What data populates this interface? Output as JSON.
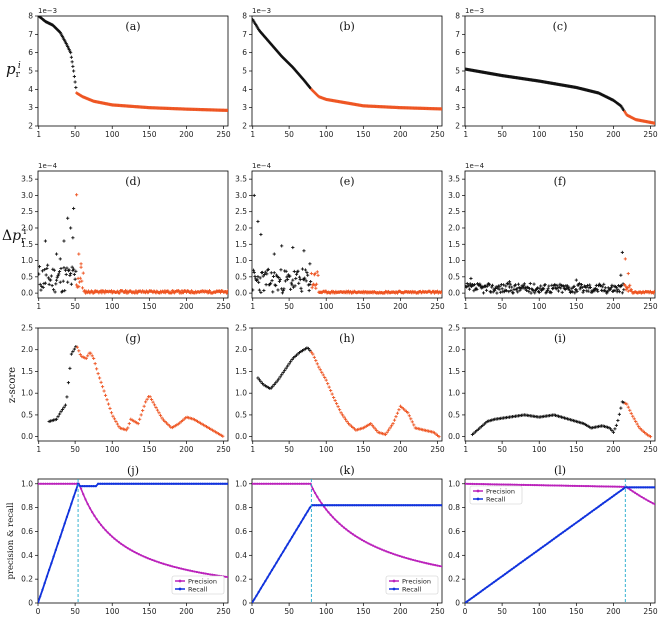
{
  "figure": {
    "row_labels": [
      "p_r^i",
      "Δp_r^i",
      "z-score",
      "precision & recall"
    ],
    "multipliers": [
      "1e−3",
      "1e−4"
    ]
  },
  "colors": {
    "black": "#111111",
    "orange": "#ee5522",
    "magenta": "#bb22bb",
    "blue": "#1133dd",
    "vline": "#22aacc"
  },
  "legend": {
    "precision": "Precision",
    "recall": "Recall"
  },
  "chart_data": [
    {
      "panel": "(a)",
      "type": "scatter",
      "row": 0,
      "xlim": [
        0,
        256
      ],
      "ylim": [
        2,
        8
      ],
      "multiplier": "1e−3",
      "xticks": [
        1,
        50,
        100,
        150,
        200,
        250
      ],
      "yticks": [
        2,
        3,
        4,
        5,
        6,
        7,
        8
      ],
      "split": 52,
      "anchors": [
        [
          1,
          8.0
        ],
        [
          10,
          7.7
        ],
        [
          20,
          7.5
        ],
        [
          30,
          7.1
        ],
        [
          38,
          6.5
        ],
        [
          44,
          6.0
        ],
        [
          48,
          5.0
        ],
        [
          52,
          3.8
        ],
        [
          60,
          3.6
        ],
        [
          75,
          3.35
        ],
        [
          100,
          3.15
        ],
        [
          150,
          3.0
        ],
        [
          200,
          2.92
        ],
        [
          256,
          2.85
        ]
      ]
    },
    {
      "panel": "(b)",
      "type": "scatter",
      "row": 0,
      "xlim": [
        0,
        256
      ],
      "ylim": [
        2,
        8
      ],
      "multiplier": "1e−3",
      "xticks": [
        1,
        50,
        100,
        150,
        200,
        250
      ],
      "yticks": [
        2,
        3,
        4,
        5,
        6,
        7,
        8
      ],
      "split": 80,
      "anchors": [
        [
          1,
          7.8
        ],
        [
          10,
          7.2
        ],
        [
          25,
          6.5
        ],
        [
          40,
          5.8
        ],
        [
          55,
          5.2
        ],
        [
          70,
          4.5
        ],
        [
          80,
          4.0
        ],
        [
          90,
          3.6
        ],
        [
          100,
          3.45
        ],
        [
          150,
          3.1
        ],
        [
          200,
          3.0
        ],
        [
          256,
          2.93
        ]
      ]
    },
    {
      "panel": "(c)",
      "type": "scatter",
      "row": 0,
      "xlim": [
        0,
        256
      ],
      "ylim": [
        2,
        8
      ],
      "multiplier": "1e−3",
      "xticks": [
        1,
        50,
        100,
        150,
        200,
        250
      ],
      "yticks": [
        2,
        3,
        4,
        5,
        6,
        7,
        8
      ],
      "split": 215,
      "anchors": [
        [
          1,
          5.1
        ],
        [
          50,
          4.75
        ],
        [
          100,
          4.45
        ],
        [
          150,
          4.1
        ],
        [
          180,
          3.8
        ],
        [
          200,
          3.4
        ],
        [
          210,
          3.1
        ],
        [
          218,
          2.6
        ],
        [
          230,
          2.35
        ],
        [
          256,
          2.15
        ]
      ]
    },
    {
      "panel": "(d)",
      "type": "scatter",
      "row": 1,
      "xlim": [
        0,
        256
      ],
      "ylim": [
        -0.15,
        3.75
      ],
      "multiplier": "1e−4",
      "xticks": [
        1,
        50,
        100,
        150,
        200,
        250
      ],
      "yticks": [
        0.0,
        0.5,
        1.0,
        1.5,
        2.0,
        2.5,
        3.0,
        3.5
      ],
      "split": 52,
      "seed": 11,
      "spikes": [
        [
          52,
          3.02
        ],
        [
          48,
          2.6
        ],
        [
          44,
          2.0
        ],
        [
          40,
          2.3
        ],
        [
          35,
          1.6
        ],
        [
          10,
          1.6
        ],
        [
          25,
          1.2
        ],
        [
          30,
          1.05
        ],
        [
          47,
          1.7
        ],
        [
          55,
          1.2
        ],
        [
          58,
          0.9
        ]
      ],
      "noise_hi": 0.9,
      "noise_lo": 0.08
    },
    {
      "panel": "(e)",
      "type": "scatter",
      "row": 1,
      "xlim": [
        0,
        256
      ],
      "ylim": [
        -0.15,
        3.75
      ],
      "multiplier": "1e−4",
      "xticks": [
        1,
        50,
        100,
        150,
        200,
        250
      ],
      "yticks": [
        0.0,
        0.5,
        1.0,
        1.5,
        2.0,
        2.5,
        3.0,
        3.5
      ],
      "split": 80,
      "seed": 23,
      "spikes": [
        [
          3,
          3.0
        ],
        [
          8,
          2.2
        ],
        [
          12,
          1.8
        ],
        [
          40,
          1.45
        ],
        [
          55,
          1.4
        ],
        [
          70,
          1.3
        ],
        [
          30,
          1.2
        ],
        [
          78,
          0.9
        ],
        [
          85,
          0.6
        ]
      ],
      "noise_hi": 0.75,
      "noise_lo": 0.06
    },
    {
      "panel": "(f)",
      "type": "scatter",
      "row": 1,
      "xlim": [
        0,
        256
      ],
      "ylim": [
        -0.15,
        3.75
      ],
      "multiplier": "1e−4",
      "xticks": [
        1,
        50,
        100,
        150,
        200,
        250
      ],
      "yticks": [
        0.0,
        0.5,
        1.0,
        1.5,
        2.0,
        2.5,
        3.0,
        3.5
      ],
      "split": 215,
      "seed": 37,
      "spikes": [
        [
          212,
          1.25
        ],
        [
          216,
          1.05
        ],
        [
          210,
          0.55
        ],
        [
          220,
          0.6
        ],
        [
          8,
          0.45
        ],
        [
          60,
          0.35
        ],
        [
          150,
          0.4
        ]
      ],
      "noise_hi": 0.3,
      "noise_lo": 0.05
    },
    {
      "panel": "(g)",
      "type": "scatter",
      "row": 2,
      "xlim": [
        0,
        256
      ],
      "ylim": [
        -0.1,
        2.5
      ],
      "xticks": [
        1,
        50,
        100,
        150,
        200,
        250
      ],
      "yticks": [
        0.0,
        0.5,
        1.0,
        1.5,
        2.0,
        2.5
      ],
      "split": 52,
      "anchors": [
        [
          15,
          0.35
        ],
        [
          25,
          0.4
        ],
        [
          30,
          0.55
        ],
        [
          38,
          0.75
        ],
        [
          45,
          1.9
        ],
        [
          52,
          2.1
        ],
        [
          58,
          1.85
        ],
        [
          65,
          1.8
        ],
        [
          70,
          1.95
        ],
        [
          75,
          1.8
        ],
        [
          80,
          1.5
        ],
        [
          90,
          1.0
        ],
        [
          100,
          0.5
        ],
        [
          110,
          0.2
        ],
        [
          120,
          0.15
        ],
        [
          125,
          0.4
        ],
        [
          135,
          0.3
        ],
        [
          145,
          0.8
        ],
        [
          150,
          0.95
        ],
        [
          158,
          0.7
        ],
        [
          168,
          0.4
        ],
        [
          180,
          0.2
        ],
        [
          190,
          0.3
        ],
        [
          200,
          0.45
        ],
        [
          210,
          0.4
        ],
        [
          220,
          0.3
        ],
        [
          235,
          0.15
        ],
        [
          250,
          0.0
        ]
      ]
    },
    {
      "panel": "(h)",
      "type": "scatter",
      "row": 2,
      "xlim": [
        0,
        256
      ],
      "ylim": [
        -0.1,
        2.5
      ],
      "xticks": [
        1,
        50,
        100,
        150,
        200,
        250
      ],
      "yticks": [
        0.0,
        0.5,
        1.0,
        1.5,
        2.0,
        2.5
      ],
      "split": 80,
      "anchors": [
        [
          8,
          1.35
        ],
        [
          15,
          1.2
        ],
        [
          25,
          1.1
        ],
        [
          35,
          1.3
        ],
        [
          45,
          1.55
        ],
        [
          55,
          1.8
        ],
        [
          65,
          1.95
        ],
        [
          75,
          2.05
        ],
        [
          82,
          1.9
        ],
        [
          90,
          1.6
        ],
        [
          100,
          1.3
        ],
        [
          110,
          0.9
        ],
        [
          120,
          0.55
        ],
        [
          130,
          0.3
        ],
        [
          140,
          0.15
        ],
        [
          150,
          0.2
        ],
        [
          160,
          0.3
        ],
        [
          170,
          0.1
        ],
        [
          180,
          0.05
        ],
        [
          190,
          0.3
        ],
        [
          200,
          0.7
        ],
        [
          210,
          0.55
        ],
        [
          220,
          0.2
        ],
        [
          232,
          0.15
        ],
        [
          245,
          0.1
        ],
        [
          252,
          0.0
        ]
      ]
    },
    {
      "panel": "(i)",
      "type": "scatter",
      "row": 2,
      "xlim": [
        0,
        256
      ],
      "ylim": [
        -0.1,
        2.5
      ],
      "xticks": [
        1,
        50,
        100,
        150,
        200,
        250
      ],
      "yticks": [
        0.0,
        0.5,
        1.0,
        1.5,
        2.0,
        2.5
      ],
      "split": 215,
      "anchors": [
        [
          10,
          0.05
        ],
        [
          20,
          0.2
        ],
        [
          30,
          0.35
        ],
        [
          40,
          0.4
        ],
        [
          60,
          0.45
        ],
        [
          80,
          0.5
        ],
        [
          100,
          0.45
        ],
        [
          120,
          0.5
        ],
        [
          140,
          0.4
        ],
        [
          160,
          0.3
        ],
        [
          170,
          0.2
        ],
        [
          185,
          0.25
        ],
        [
          195,
          0.2
        ],
        [
          200,
          0.1
        ],
        [
          205,
          0.3
        ],
        [
          212,
          0.8
        ],
        [
          218,
          0.75
        ],
        [
          225,
          0.5
        ],
        [
          235,
          0.2
        ],
        [
          245,
          0.05
        ],
        [
          250,
          0.0
        ]
      ]
    },
    {
      "panel": "(j)",
      "type": "line",
      "row": 3,
      "xlim": [
        0,
        256
      ],
      "ylim": [
        0,
        1.04
      ],
      "xticks": [
        0,
        50,
        100,
        150,
        200,
        250
      ],
      "yticks": [
        0,
        0.2,
        0.4,
        0.6,
        0.8,
        1.0
      ],
      "split": 54,
      "recall_plateau": 1.0,
      "legend": "bottom-right"
    },
    {
      "panel": "(k)",
      "type": "line",
      "row": 3,
      "xlim": [
        0,
        256
      ],
      "ylim": [
        0,
        1.04
      ],
      "xticks": [
        0,
        50,
        100,
        150,
        200,
        250
      ],
      "yticks": [
        0,
        0.2,
        0.4,
        0.6,
        0.8,
        1.0
      ],
      "split": 80,
      "recall_plateau": 0.82,
      "legend": "bottom-right"
    },
    {
      "panel": "(l)",
      "type": "line",
      "row": 3,
      "xlim": [
        0,
        256
      ],
      "ylim": [
        0,
        1.04
      ],
      "xticks": [
        0,
        50,
        100,
        150,
        200,
        250
      ],
      "yticks": [
        0,
        0.2,
        0.4,
        0.6,
        0.8,
        1.0
      ],
      "split": 216,
      "recall_plateau": 0.97,
      "legend": "top-left"
    }
  ]
}
